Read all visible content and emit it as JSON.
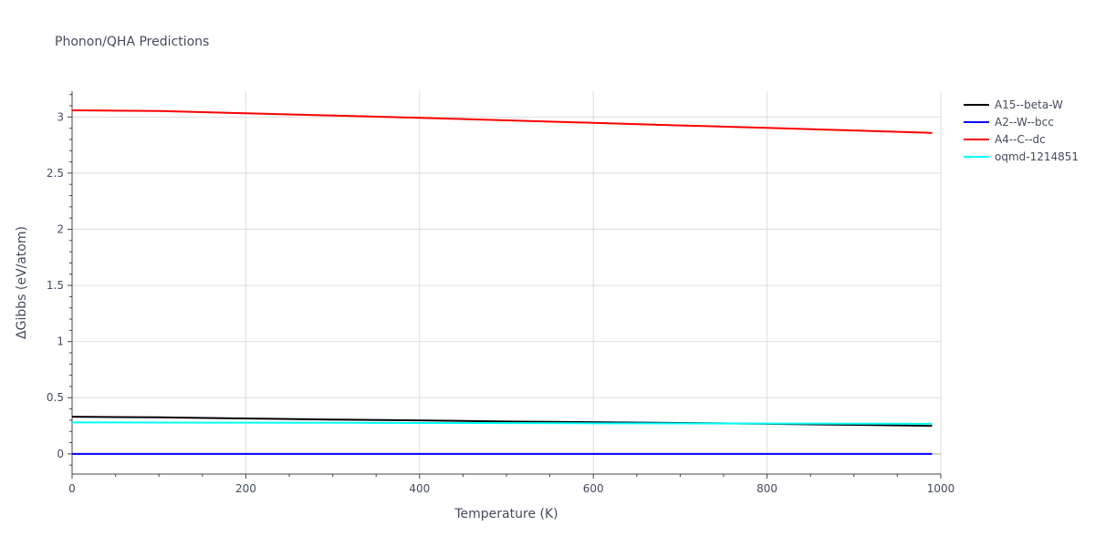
{
  "chart_data": {
    "type": "line",
    "title": "Phonon/QHA Predictions",
    "xlabel": "Temperature (K)",
    "ylabel": "ΔGibbs (eV/atom)",
    "xlim": [
      0,
      1000
    ],
    "ylim": [
      -0.18,
      3.23
    ],
    "x_ticks": [
      0,
      200,
      400,
      600,
      800,
      1000
    ],
    "x_tick_labels": [
      "0",
      "200",
      "400",
      "600",
      "800",
      "1000"
    ],
    "y_ticks": [
      0,
      0.5,
      1,
      1.5,
      2,
      2.5,
      3
    ],
    "y_tick_labels": [
      "0",
      "0.5",
      "1",
      "1.5",
      "2",
      "2.5",
      "3"
    ],
    "grid": true,
    "legend_position": "top-right",
    "series": [
      {
        "name": "A15--beta-W",
        "color": "#000000",
        "x": [
          0,
          100,
          200,
          300,
          400,
          500,
          600,
          700,
          800,
          900,
          990
        ],
        "y": [
          0.33,
          0.325,
          0.315,
          0.305,
          0.298,
          0.288,
          0.282,
          0.275,
          0.268,
          0.258,
          0.25
        ]
      },
      {
        "name": "A2--W--bcc",
        "color": "#0000ff",
        "x": [
          0,
          990
        ],
        "y": [
          0,
          0
        ]
      },
      {
        "name": "A4--C--dc",
        "color": "#ff0000",
        "x": [
          0,
          100,
          200,
          300,
          400,
          500,
          600,
          700,
          800,
          900,
          990
        ],
        "y": [
          3.06,
          3.053,
          3.033,
          3.013,
          2.993,
          2.97,
          2.948,
          2.925,
          2.903,
          2.88,
          2.858
        ]
      },
      {
        "name": "oqmd-1214851",
        "color": "#00ffff",
        "x": [
          0,
          200,
          400,
          600,
          800,
          990
        ],
        "y": [
          0.28,
          0.278,
          0.275,
          0.272,
          0.27,
          0.268
        ]
      }
    ]
  }
}
